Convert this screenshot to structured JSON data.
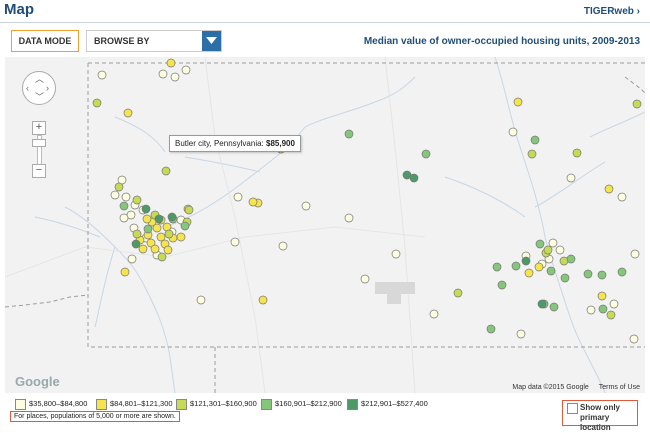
{
  "header": {
    "title": "Map",
    "tigerweb_link": "TIGERweb ›"
  },
  "controls": {
    "data_mode_label": "DATA MODE",
    "browse_label": "BROWSE BY",
    "map_title": "Median value of owner-occupied housing units, 2009-2013"
  },
  "map": {
    "zoom_plus": "+",
    "zoom_minus": "−",
    "tooltip_place": "Butler city, Pennsylvania:",
    "tooltip_value": "$85,900",
    "google_logo": "Google",
    "map_data": "Map data ©2015 Google",
    "terms": "Terms of Use"
  },
  "legend": {
    "items": [
      {
        "label": "$35,800–$84,800",
        "color": "#fdfde0"
      },
      {
        "label": "$84,801–$121,300",
        "color": "#f5e44c"
      },
      {
        "label": "$121,301–$160,900",
        "color": "#c6da55"
      },
      {
        "label": "$160,901–$212,900",
        "color": "#84c67a"
      },
      {
        "label": "$212,901–$527,400",
        "color": "#4e9a66"
      }
    ],
    "note": "For places, populations of 5,000 or more are shown.",
    "primary_location_label_1": "Show only",
    "primary_location_label_2": "primary location"
  }
}
